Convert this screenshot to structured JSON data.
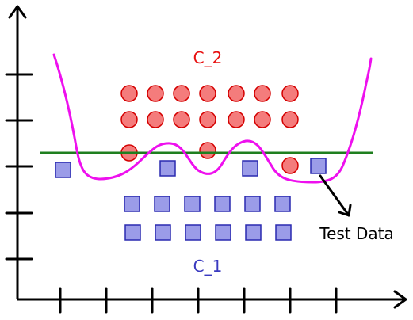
{
  "labels": {
    "class2": "C_2",
    "class1": "C_1",
    "test": "Test Data"
  },
  "colors": {
    "axis": "#000000",
    "class2_fill": "#f47c7c",
    "class2_stroke": "#d40000",
    "class2_text": "#e81010",
    "class1_fill": "#9b9ce8",
    "class1_stroke": "#2a2ab0",
    "class1_text": "#3a3ac0",
    "linear_boundary": "#1f7f1f",
    "nonlinear_boundary": "#ee10ee",
    "arrow": "#000000"
  },
  "class2_point_count": 17,
  "class1_point_count": 15,
  "test_point_count": 1
}
